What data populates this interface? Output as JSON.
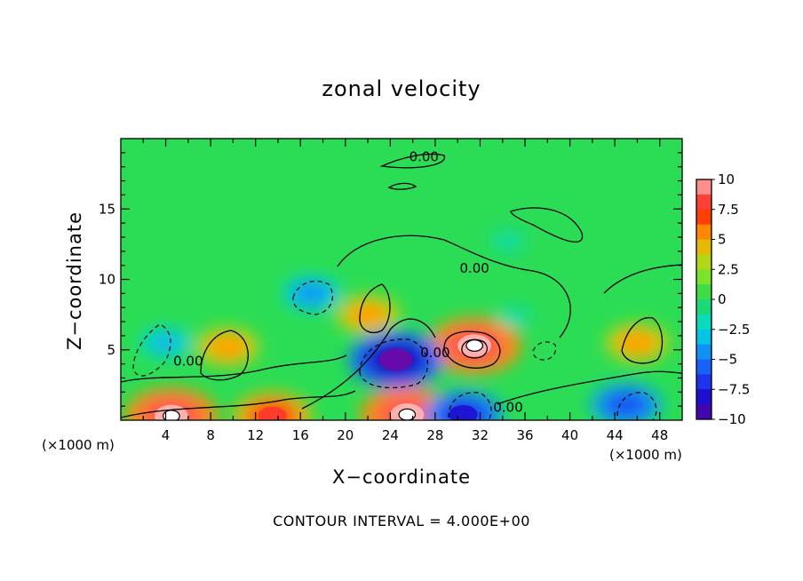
{
  "chart_data": {
    "type": "heatmap",
    "title": "zonal velocity",
    "xlabel": "X−coordinate",
    "ylabel": "Z−coordinate",
    "x_unit_left": "(×1000 m)",
    "x_unit_right": "(×1000 m)",
    "footnote": "CONTOUR INTERVAL = 4.000E+00",
    "xlim": [
      0,
      50
    ],
    "ylim": [
      0,
      20
    ],
    "xticks": [
      "4",
      "8",
      "12",
      "16",
      "20",
      "24",
      "28",
      "32",
      "36",
      "40",
      "44",
      "48"
    ],
    "yticks": [
      "5",
      "10",
      "15"
    ],
    "colorbar": {
      "range": [
        -10,
        10
      ],
      "ticks": [
        "10",
        "7.5",
        "5",
        "2.5",
        "0",
        "−2.5",
        "−5",
        "−7.5",
        "−10"
      ],
      "tick_values": [
        10,
        7.5,
        5,
        2.5,
        0,
        -2.5,
        -5,
        -7.5,
        -10
      ]
    },
    "contour_labels": [
      {
        "text": "0.00",
        "x": 27,
        "z": 18.7
      },
      {
        "text": "0.00",
        "x": 31.5,
        "z": 10.8
      },
      {
        "text": "0.00",
        "x": 6,
        "z": 4.2
      },
      {
        "text": "0.00",
        "x": 28,
        "z": 4.8
      },
      {
        "text": "0.00",
        "x": 34.5,
        "z": 0.9
      }
    ],
    "features": [
      {
        "type": "max",
        "x": 31.5,
        "z": 5.3,
        "value": 10
      },
      {
        "type": "max",
        "x": 4.5,
        "z": 0.3,
        "value": 10
      },
      {
        "type": "max",
        "x": 25.5,
        "z": 0.4,
        "value": 10
      },
      {
        "type": "max",
        "x": 13.5,
        "z": 0.3,
        "value": 8
      },
      {
        "type": "max",
        "x": 9.5,
        "z": 5.2,
        "value": 6
      },
      {
        "type": "max",
        "x": 46,
        "z": 5.5,
        "value": 6
      },
      {
        "type": "max",
        "x": 22,
        "z": 7.5,
        "value": 6
      },
      {
        "type": "min",
        "x": 24.5,
        "z": 4.3,
        "value": -10
      },
      {
        "type": "min",
        "x": 30.5,
        "z": 0.4,
        "value": -8
      },
      {
        "type": "min",
        "x": 45,
        "z": 1.1,
        "value": -7
      },
      {
        "type": "min",
        "x": 17,
        "z": 9,
        "value": -5
      },
      {
        "type": "min",
        "x": 4,
        "z": 5.5,
        "value": -4
      },
      {
        "type": "min",
        "x": 34.5,
        "z": 12.7,
        "value": -2
      },
      {
        "type": "min",
        "x": 35,
        "z": 7.3,
        "value": -2
      }
    ]
  }
}
